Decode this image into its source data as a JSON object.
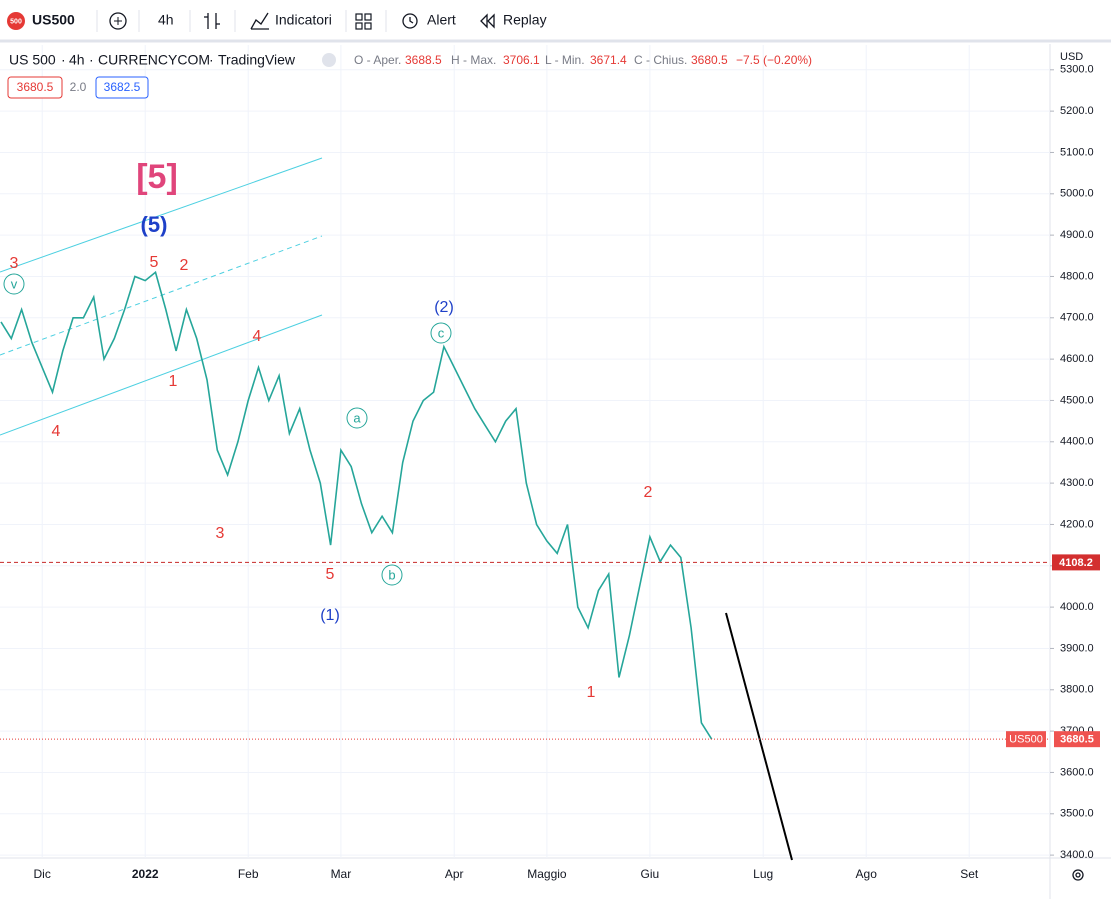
{
  "toolbar": {
    "symbol": "US500",
    "badge": "500",
    "interval": "4h",
    "indicators": "Indicatori",
    "alert": "Alert",
    "replay": "Replay"
  },
  "legend": {
    "name": "US 500",
    "interval": "4h",
    "exchange": "CURRENCYCOM",
    "source": "TradingView",
    "separator": "·",
    "open_label": "O - Aper.",
    "open": "3688.5",
    "high_label": "H - Max.",
    "high": "3706.1",
    "low_label": "L - Min.",
    "low": "3671.4",
    "close_label": "C - Chius.",
    "close": "3680.5",
    "change": "−7.5 (−0.20%)",
    "bid": "3680.5",
    "spread": "2.0",
    "ask": "3682.5"
  },
  "currency": "USD",
  "chart_data": {
    "type": "line",
    "color": "#26a69a",
    "categories": [
      null,
      null,
      null,
      null,
      "Dic",
      null,
      null,
      null,
      null,
      null,
      null,
      null,
      null,
      null,
      "2022",
      null,
      null,
      null,
      null,
      null,
      null,
      null,
      null,
      null,
      "Feb",
      null,
      null,
      null,
      null,
      null,
      null,
      null,
      null,
      "Mar",
      null,
      null,
      null,
      null,
      null,
      null,
      null,
      null,
      null,
      null,
      "Apr",
      null,
      null,
      null,
      null,
      null,
      null,
      null,
      null,
      "Maggio",
      null,
      null,
      null,
      null,
      null,
      null,
      null,
      null,
      null,
      "Giu",
      null,
      null,
      null,
      null,
      null,
      null,
      null,
      null,
      null,
      null,
      "Lug",
      null,
      null,
      null,
      null,
      null,
      null,
      null,
      null,
      null,
      "Ago",
      null,
      null,
      null,
      null,
      null,
      null,
      null,
      null,
      null,
      "Set",
      null,
      null,
      null,
      null,
      null
    ],
    "values": [
      4690,
      4650,
      4720,
      4640,
      4580,
      4520,
      4620,
      4700,
      4700,
      4750,
      4600,
      4650,
      4720,
      4800,
      4790,
      4810,
      4720,
      4620,
      4720,
      4650,
      4550,
      4380,
      4320,
      4400,
      4500,
      4580,
      4500,
      4560,
      4420,
      4480,
      4380,
      4300,
      4150,
      4380,
      4340,
      4250,
      4180,
      4220,
      4180,
      4350,
      4450,
      4500,
      4520,
      4630,
      4580,
      4530,
      4480,
      4440,
      4400,
      4450,
      4480,
      4300,
      4200,
      4160,
      4130,
      4200,
      4000,
      3950,
      4040,
      4080,
      3830,
      3930,
      4050,
      4170,
      4110,
      4150,
      4120,
      3950,
      3720,
      3680.5,
      null,
      null,
      null,
      null,
      null,
      null,
      null,
      null,
      null,
      null,
      null,
      null,
      null,
      null,
      null,
      null,
      null,
      null,
      null,
      null,
      null,
      null,
      null,
      null,
      null,
      null,
      null,
      null,
      null,
      null
    ],
    "ylim": [
      3393,
      5360
    ],
    "yticks": [
      {
        "value": 5300,
        "label": "5300.0"
      },
      {
        "value": 5200,
        "label": "5200.0"
      },
      {
        "value": 5100,
        "label": "5100.0"
      },
      {
        "value": 5000,
        "label": "5000.0"
      },
      {
        "value": 4900,
        "label": "4900.0"
      },
      {
        "value": 4800,
        "label": "4800.0"
      },
      {
        "value": 4700,
        "label": "4700.0"
      },
      {
        "value": 4600,
        "label": "4600.0"
      },
      {
        "value": 4500,
        "label": "4500.0"
      },
      {
        "value": 4400,
        "label": "4400.0"
      },
      {
        "value": 4300,
        "label": "4300.0"
      },
      {
        "value": 4200,
        "label": "4200.0"
      },
      {
        "value": 4100,
        "label": "4100.0"
      },
      {
        "value": 4000,
        "label": "4000.0"
      },
      {
        "value": 3900,
        "label": "3900.0"
      },
      {
        "value": 3800,
        "label": "3800.0"
      },
      {
        "value": 3700,
        "label": "3700.0"
      },
      {
        "value": 3600,
        "label": "3600.0"
      },
      {
        "value": 3500,
        "label": "3500.0"
      },
      {
        "value": 3400,
        "label": "3400.0"
      }
    ],
    "level_line": {
      "value": 4108.2,
      "label": "4108.2"
    },
    "last_price": {
      "value": 3680.5,
      "label": "3680.5",
      "symbol": "US500"
    },
    "annotations": [
      "3",
      "v",
      "4",
      "[5]",
      "(5)",
      "5",
      "2",
      "1",
      "4",
      "3",
      "5",
      "(1)",
      "a",
      "b",
      "c",
      "(2)",
      "2",
      "1"
    ]
  }
}
